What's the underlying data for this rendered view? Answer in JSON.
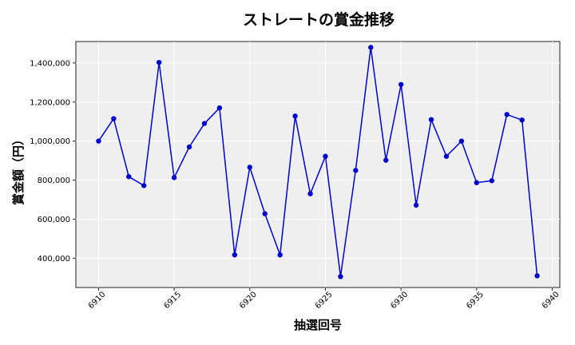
{
  "chart_data": {
    "type": "line",
    "title": "ストレートの賞金推移",
    "xlabel": "抽選回号",
    "ylabel": "賞金額（円）",
    "xlim": [
      6908.5,
      6940.5
    ],
    "ylim": [
      250000,
      1510000
    ],
    "x_ticks": [
      6910,
      6915,
      6920,
      6925,
      6930,
      6935,
      6940
    ],
    "x_tick_labels": [
      "6910",
      "6915",
      "6920",
      "6925",
      "6930",
      "6935",
      "6940"
    ],
    "y_ticks": [
      400000,
      600000,
      800000,
      1000000,
      1200000,
      1400000
    ],
    "y_tick_labels": [
      "400,000",
      "600,000",
      "800,000",
      "1,000,000",
      "1,200,000",
      "1,400,000"
    ],
    "grid": true,
    "series": [
      {
        "color": "#0000cc",
        "x": [
          6910,
          6911,
          6912,
          6913,
          6914,
          6915,
          6916,
          6917,
          6918,
          6919,
          6920,
          6921,
          6922,
          6923,
          6924,
          6925,
          6926,
          6927,
          6928,
          6929,
          6930,
          6931,
          6932,
          6933,
          6934,
          6935,
          6936,
          6937,
          6938,
          6939
        ],
        "values": [
          1000000,
          1115000,
          818000,
          772000,
          1403000,
          813000,
          970000,
          1090000,
          1170000,
          417000,
          866000,
          628000,
          417000,
          1128000,
          730000,
          922000,
          306000,
          850000,
          1480000,
          902000,
          1290000,
          672000,
          1110000,
          922000,
          1000000,
          787000,
          797000,
          1136000,
          1108000,
          310000
        ]
      }
    ]
  }
}
